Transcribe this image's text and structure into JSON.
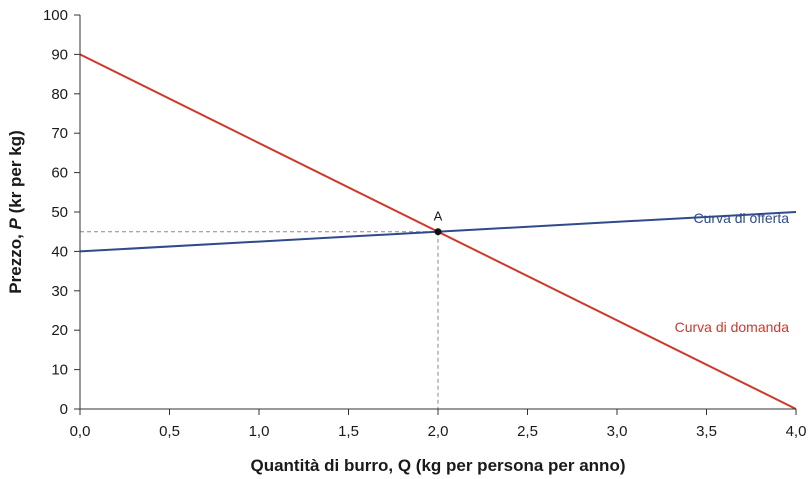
{
  "chart_data": {
    "type": "line",
    "xlabel_prefix": "Quantità di burro, ",
    "xlabel_var": "Q",
    "xlabel_suffix": " (kg per persona per anno)",
    "ylabel_prefix": "Prezzo, ",
    "ylabel_var": "P",
    "ylabel_suffix": " (kr per kg)",
    "xlim": [
      0,
      4
    ],
    "ylim": [
      0,
      100
    ],
    "x_ticks": [
      "0,0",
      "0,5",
      "1,0",
      "1,5",
      "2,0",
      "2,5",
      "3,0",
      "3,5",
      "4,0"
    ],
    "x_tick_values": [
      0,
      0.5,
      1,
      1.5,
      2,
      2.5,
      3,
      3.5,
      4
    ],
    "y_ticks": [
      "0",
      "10",
      "20",
      "30",
      "40",
      "50",
      "60",
      "70",
      "80",
      "90",
      "100"
    ],
    "y_tick_values": [
      0,
      10,
      20,
      30,
      40,
      50,
      60,
      70,
      80,
      90,
      100
    ],
    "grid": false,
    "series": [
      {
        "name": "Curva di offerta",
        "x": [
          0,
          4
        ],
        "y": [
          40,
          50
        ],
        "color": "#2f4b8c"
      },
      {
        "name": "Curva di domanda",
        "x": [
          0,
          4
        ],
        "y": [
          90,
          0
        ],
        "color": "#d0382a"
      }
    ],
    "equilibrium": {
      "label": "A",
      "x": 2,
      "y": 45
    }
  }
}
